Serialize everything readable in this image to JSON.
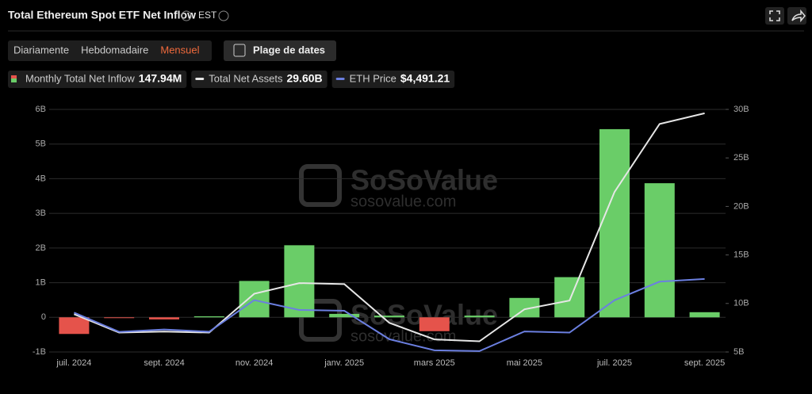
{
  "header": {
    "title": "Total Ethereum Spot ETF Net Inflow",
    "timezone": "EST"
  },
  "controls": {
    "periods": [
      "Diariamente",
      "Hebdomadaire",
      "Mensuel"
    ],
    "active_period": 2,
    "date_range": "Plage de dates"
  },
  "watermark": {
    "brand": "SoSoValue",
    "site": "sosovalue.com"
  },
  "chart_data": {
    "type": "bar-line",
    "categories": [
      "juil. 2024",
      null,
      "sept. 2024",
      null,
      "nov. 2024",
      null,
      "janv. 2025",
      null,
      "mars 2025",
      null,
      "mai 2025",
      null,
      "juil. 2025",
      null,
      "sept. 2025"
    ],
    "series": [
      {
        "name": "Monthly Total Net Inflow",
        "type": "bar",
        "positive_color": "#6acd68",
        "negative_color": "#e5534b",
        "latest_label": "147.94M",
        "values": [
          -0.48,
          -0.01,
          -0.06,
          0.03,
          1.05,
          2.08,
          0.1,
          0.05,
          -0.4,
          0.05,
          0.56,
          1.16,
          5.43,
          3.87,
          0.148
        ]
      },
      {
        "name": "Total Net Assets",
        "type": "line",
        "axis": "y2",
        "color": "#e6e6e6",
        "latest_label": "29.60B",
        "values": [
          8.9,
          7.0,
          7.1,
          7.0,
          11.0,
          12.1,
          12.0,
          8.0,
          6.3,
          6.1,
          9.4,
          10.3,
          21.5,
          28.5,
          29.6
        ]
      },
      {
        "name": "ETH Price",
        "type": "line",
        "axis": "y3",
        "color": "#6b7fe0",
        "latest_label": "$4,491.21",
        "values": [
          3232,
          2513,
          2602,
          2518,
          3700,
          3332,
          3300,
          2237,
          1822,
          1793,
          2528,
          2486,
          3697,
          4390,
          4491.21
        ]
      }
    ],
    "ylim": [
      -1,
      6
    ],
    "yticks": [
      {
        "value": -1,
        "label": "-1B"
      },
      0,
      {
        "value": 1,
        "label": "1B"
      },
      {
        "value": 2,
        "label": "2B"
      },
      {
        "value": 3,
        "label": "3B"
      },
      {
        "value": 4,
        "label": "4B"
      },
      {
        "value": 5,
        "label": "5B"
      },
      {
        "value": 6,
        "label": "6B"
      }
    ],
    "y2lim": [
      5,
      30
    ],
    "y2ticks": [
      {
        "value": 5,
        "label": "5B"
      },
      {
        "value": 10,
        "label": "10B"
      },
      {
        "value": 15,
        "label": "15B"
      },
      {
        "value": 20,
        "label": "20B"
      },
      {
        "value": 25,
        "label": "25B"
      },
      {
        "value": 30,
        "label": "30B"
      }
    ],
    "y3lim": [
      1760,
      10830
    ],
    "grid": true
  }
}
